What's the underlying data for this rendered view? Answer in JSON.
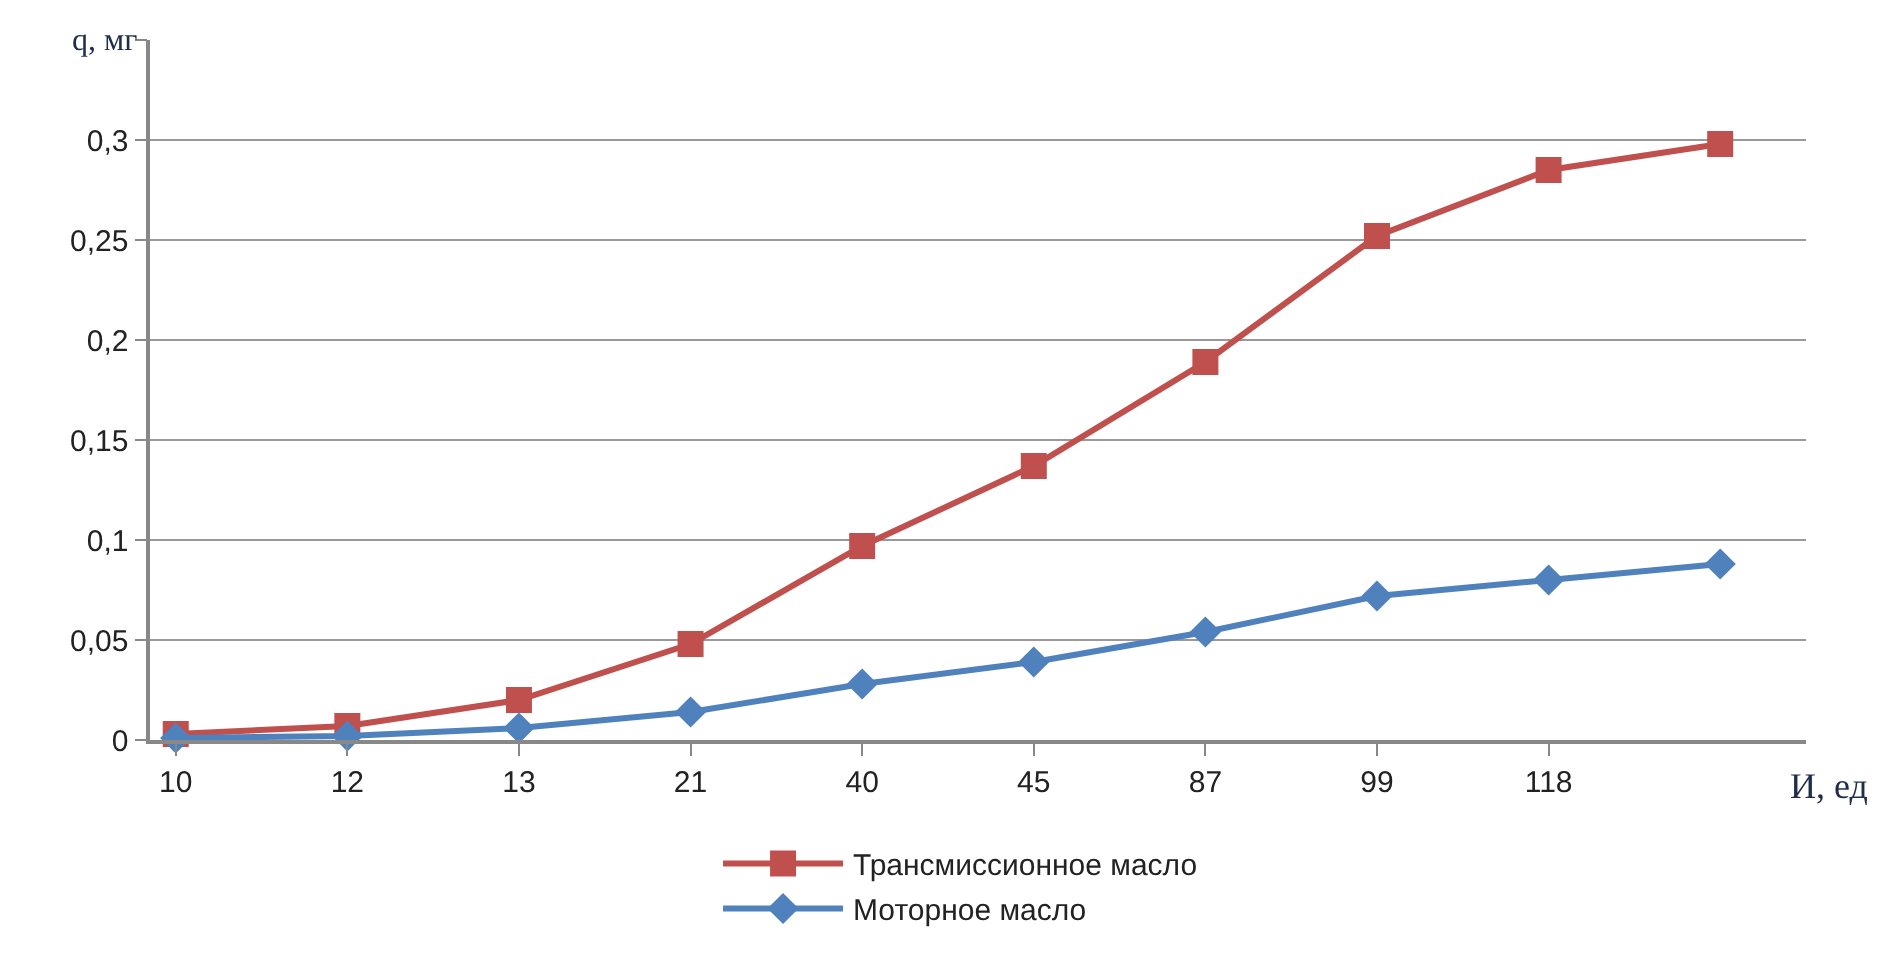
{
  "chart_data": {
    "type": "line",
    "ylabel": "q, мг",
    "xlabel": "И, ед",
    "categories": [
      "10",
      "12",
      "13",
      "21",
      "40",
      "45",
      "87",
      "99",
      "118",
      null
    ],
    "ylim": [
      0,
      0.35
    ],
    "yticks": [
      0,
      {
        "value": 0.05,
        "label": "0,05"
      },
      {
        "value": 0.1,
        "label": "0,1"
      },
      {
        "value": 0.15,
        "label": "0,15"
      },
      {
        "value": 0.2,
        "label": "0,2"
      },
      {
        "value": 0.25,
        "label": "0,25"
      },
      {
        "value": 0.3,
        "label": "0,3"
      },
      {
        "value": 0.35,
        "label": null
      }
    ],
    "series": [
      {
        "name": "Трансмиссионное масло",
        "color": "#c0504d",
        "marker": "square",
        "values": [
          0.003,
          0.007,
          0.02,
          0.048,
          0.097,
          0.137,
          0.189,
          0.252,
          0.285,
          0.298
        ]
      },
      {
        "name": "Моторное масло",
        "color": "#4f81bd",
        "marker": "diamond",
        "values": [
          0.001,
          0.002,
          0.006,
          0.014,
          0.028,
          0.039,
          0.054,
          0.072,
          0.08,
          0.088
        ]
      }
    ],
    "grid": "y",
    "legend": "bottom"
  }
}
